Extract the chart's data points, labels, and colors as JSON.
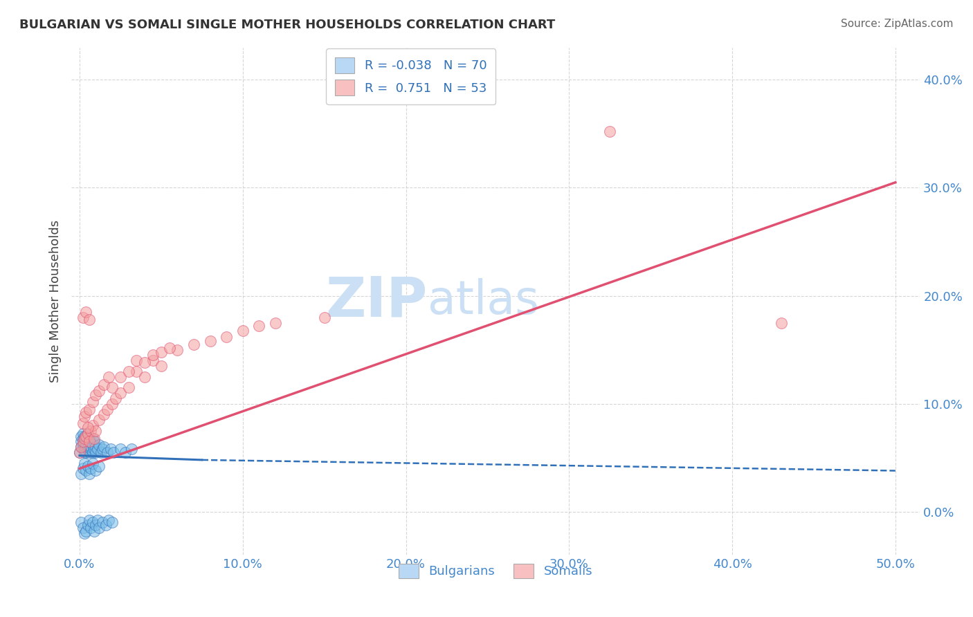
{
  "title": "BULGARIAN VS SOMALI SINGLE MOTHER HOUSEHOLDS CORRELATION CHART",
  "source": "Source: ZipAtlas.com",
  "ylabel": "Single Mother Households",
  "xlim": [
    -0.005,
    0.515
  ],
  "ylim": [
    -0.04,
    0.43
  ],
  "R_bulgarian": -0.038,
  "N_bulgarian": 70,
  "R_somali": 0.751,
  "N_somali": 53,
  "color_bulgarian": "#7bbde8",
  "color_somali": "#f4a0a0",
  "line_color_bulgarian": "#3070b8",
  "line_color_somali": "#e05070",
  "legend_box_color_bulgarian": "#b8d8f5",
  "legend_box_color_somali": "#f8c0c0",
  "background_color": "#ffffff",
  "title_color": "#333333",
  "source_color": "#666666",
  "watermark_zip": "ZIP",
  "watermark_atlas": "atlas",
  "watermark_color": "#cce0f5",
  "grid_color": "#cccccc",
  "tick_color": "#4488cc",
  "bulgarian_x": [
    0.0,
    0.001,
    0.001,
    0.001,
    0.002,
    0.002,
    0.002,
    0.002,
    0.003,
    0.003,
    0.003,
    0.003,
    0.004,
    0.004,
    0.004,
    0.004,
    0.005,
    0.005,
    0.005,
    0.005,
    0.006,
    0.006,
    0.006,
    0.007,
    0.007,
    0.007,
    0.008,
    0.008,
    0.008,
    0.009,
    0.009,
    0.01,
    0.01,
    0.011,
    0.012,
    0.013,
    0.014,
    0.015,
    0.017,
    0.019,
    0.021,
    0.025,
    0.028,
    0.032,
    0.001,
    0.002,
    0.003,
    0.004,
    0.005,
    0.006,
    0.007,
    0.008,
    0.009,
    0.01,
    0.011,
    0.012,
    0.014,
    0.016,
    0.018,
    0.02,
    0.001,
    0.002,
    0.003,
    0.004,
    0.005,
    0.006,
    0.007,
    0.008,
    0.01,
    0.012
  ],
  "bulgarian_y": [
    0.055,
    0.065,
    0.07,
    0.06,
    0.068,
    0.062,
    0.058,
    0.072,
    0.065,
    0.058,
    0.055,
    0.07,
    0.062,
    0.068,
    0.055,
    0.06,
    0.065,
    0.058,
    0.072,
    0.06,
    0.068,
    0.055,
    0.062,
    0.058,
    0.065,
    0.06,
    0.055,
    0.068,
    0.062,
    0.058,
    0.065,
    0.06,
    0.055,
    0.058,
    0.062,
    0.055,
    0.058,
    0.06,
    0.055,
    0.058,
    0.055,
    0.058,
    0.055,
    0.058,
    -0.01,
    -0.015,
    -0.02,
    -0.018,
    -0.012,
    -0.008,
    -0.015,
    -0.01,
    -0.018,
    -0.012,
    -0.008,
    -0.015,
    -0.01,
    -0.012,
    -0.008,
    -0.01,
    0.035,
    0.04,
    0.045,
    0.038,
    0.042,
    0.035,
    0.04,
    0.045,
    0.038,
    0.042
  ],
  "somali_x": [
    0.0,
    0.001,
    0.002,
    0.003,
    0.004,
    0.005,
    0.006,
    0.007,
    0.008,
    0.009,
    0.01,
    0.012,
    0.015,
    0.017,
    0.02,
    0.022,
    0.025,
    0.03,
    0.035,
    0.04,
    0.045,
    0.05,
    0.06,
    0.07,
    0.08,
    0.09,
    0.1,
    0.11,
    0.12,
    0.15,
    0.002,
    0.003,
    0.004,
    0.005,
    0.006,
    0.008,
    0.01,
    0.012,
    0.015,
    0.018,
    0.02,
    0.025,
    0.03,
    0.035,
    0.04,
    0.045,
    0.05,
    0.055,
    0.325,
    0.43,
    0.002,
    0.004,
    0.006
  ],
  "somali_y": [
    0.055,
    0.06,
    0.065,
    0.068,
    0.07,
    0.072,
    0.065,
    0.075,
    0.08,
    0.068,
    0.075,
    0.085,
    0.09,
    0.095,
    0.1,
    0.105,
    0.11,
    0.115,
    0.13,
    0.125,
    0.14,
    0.135,
    0.15,
    0.155,
    0.158,
    0.162,
    0.168,
    0.172,
    0.175,
    0.18,
    0.082,
    0.088,
    0.092,
    0.078,
    0.095,
    0.102,
    0.108,
    0.112,
    0.118,
    0.125,
    0.115,
    0.125,
    0.13,
    0.14,
    0.138,
    0.145,
    0.148,
    0.152,
    0.352,
    0.175,
    0.18,
    0.185,
    0.178
  ],
  "bulgarian_line_x": [
    0.0,
    0.075,
    0.075,
    0.5
  ],
  "bulgarian_line_y": [
    0.052,
    0.048,
    0.048,
    0.038
  ],
  "bulgarian_line_style": [
    "solid_to_x",
    0.075
  ],
  "somali_line_x": [
    0.0,
    0.5
  ],
  "somali_line_y": [
    0.04,
    0.305
  ]
}
